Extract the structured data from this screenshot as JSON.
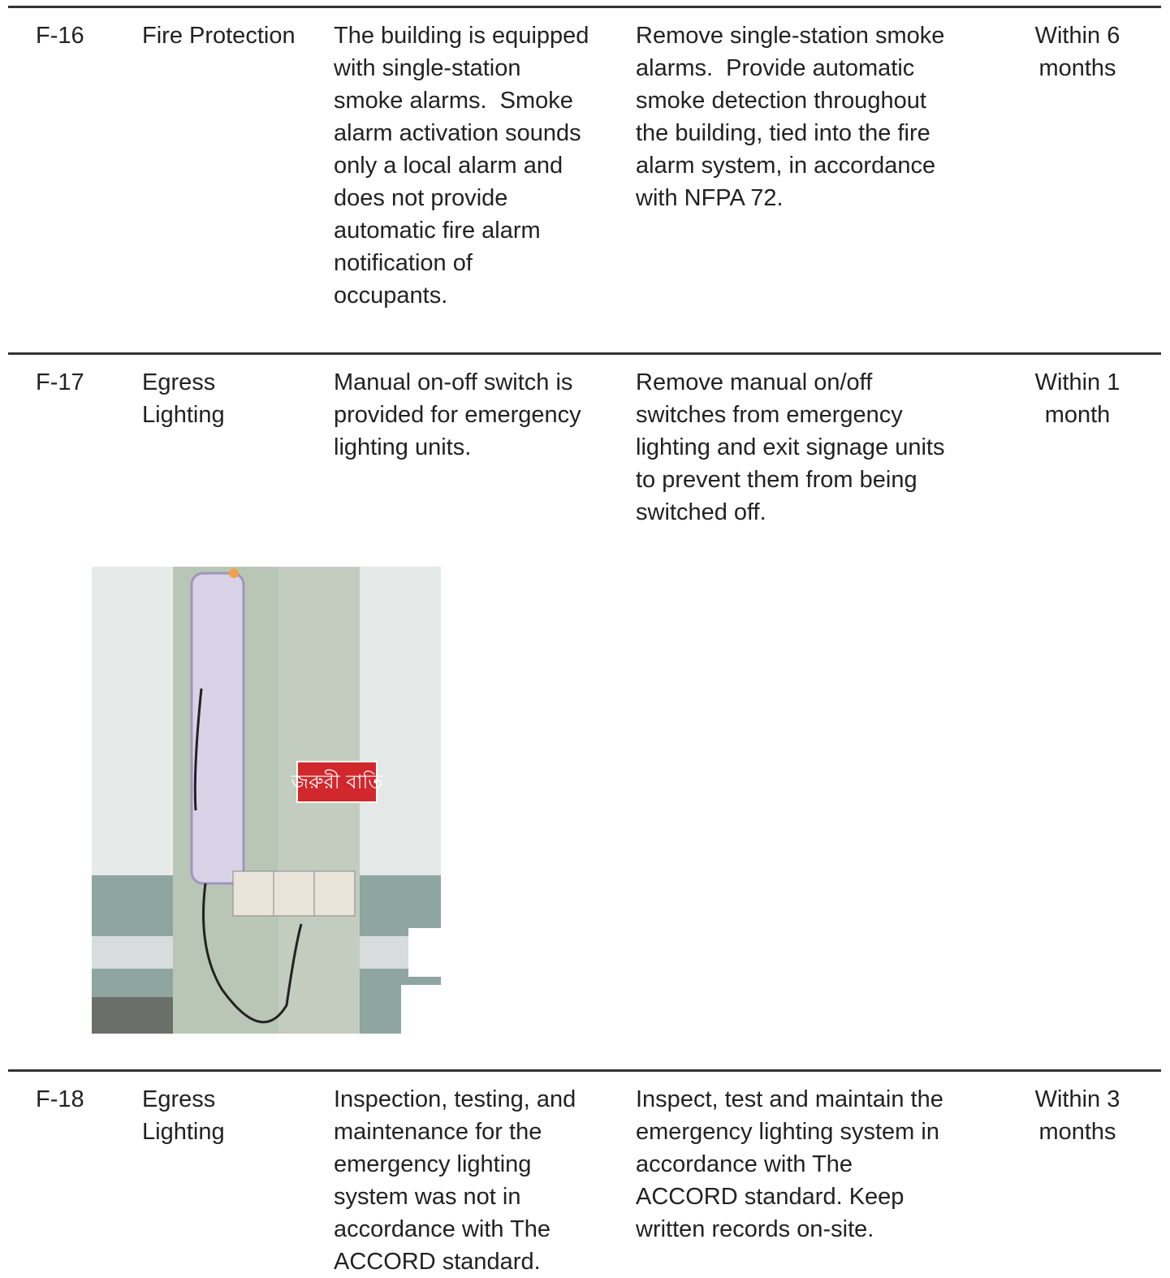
{
  "table": {
    "rows": [
      {
        "id": "F-16",
        "category": [
          "Fire Protection"
        ],
        "finding": [
          "The building is equipped",
          "with single-station",
          "smoke alarms.  Smoke",
          "alarm activation sounds",
          "only a local alarm and",
          "does not provide",
          "automatic fire alarm",
          "notification of",
          "occupants."
        ],
        "recommendation": [
          "Remove single-station smoke",
          "alarms.  Provide automatic",
          "smoke detection throughout",
          "the building, tied into the fire",
          "alarm system, in accordance",
          "with NFPA 72."
        ],
        "timeline": [
          "Within 6",
          "months"
        ]
      },
      {
        "id": "F-17",
        "category": [
          "Egress",
          "Lighting"
        ],
        "finding": [
          "Manual on-off switch is",
          "provided for emergency",
          "lighting units."
        ],
        "recommendation": [
          "Remove manual on/off",
          "switches from emergency",
          "lighting and exit signage units",
          "to prevent them from being",
          "switched off."
        ],
        "timeline": [
          "Within 1",
          "month"
        ],
        "photo_sign": "জরুরী বাতি"
      },
      {
        "id": "F-18",
        "category": [
          "Egress",
          "Lighting"
        ],
        "finding": [
          "Inspection, testing, and",
          "maintenance for the",
          "emergency lighting",
          "system was not in",
          "accordance with The",
          "ACCORD standard."
        ],
        "recommendation": [
          "Inspect, test and maintain the",
          "emergency lighting system in",
          "accordance with The",
          "ACCORD standard. Keep",
          "written records on-site."
        ],
        "timeline": [
          "Within 3",
          "months"
        ]
      }
    ]
  }
}
